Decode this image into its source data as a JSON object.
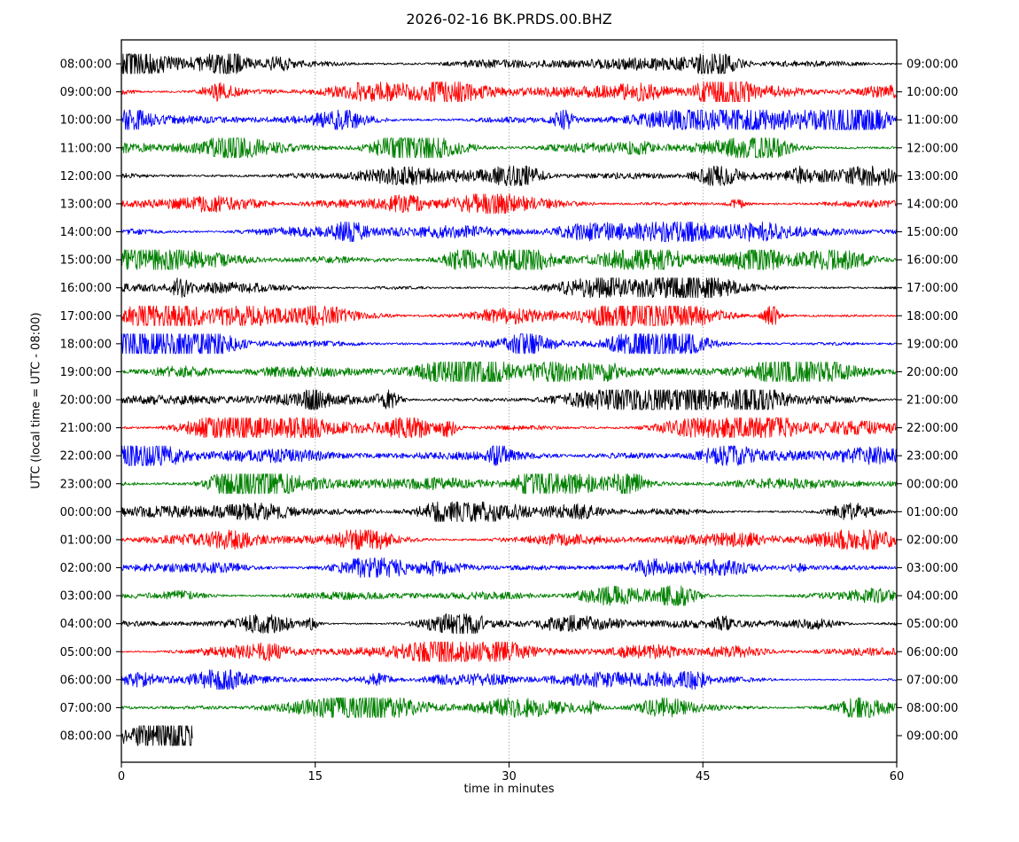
{
  "figure": {
    "title": "2026-02-16 BK.PRDS.00.BHZ",
    "xlabel": "time in minutes",
    "ylabel": "UTC (local time = UTC - 08:00)"
  },
  "chart_data": {
    "type": "line",
    "subtype": "helicorder-dayplot",
    "title": "2026-02-16 BK.PRDS.00.BHZ",
    "xlabel": "time in minutes",
    "ylabel": "UTC (local time = UTC - 08:00)",
    "xlim": [
      0,
      60
    ],
    "x_ticks": [
      0,
      15,
      30,
      45,
      60
    ],
    "x_grid": [
      15,
      30,
      45
    ],
    "grid_style": "dotted",
    "minutes_per_row": 60,
    "trace_color_cycle": [
      "#000000",
      "#ff0000",
      "#0000ff",
      "#008000"
    ],
    "rows": [
      {
        "left_label": "08:00:00",
        "right_label": "09:00:00",
        "color": "#000000",
        "minutes": 60,
        "amp": 0.95
      },
      {
        "left_label": "09:00:00",
        "right_label": "10:00:00",
        "color": "#ff0000",
        "minutes": 60,
        "amp": 1.0
      },
      {
        "left_label": "10:00:00",
        "right_label": "11:00:00",
        "color": "#0000ff",
        "minutes": 60,
        "amp": 1.0
      },
      {
        "left_label": "11:00:00",
        "right_label": "12:00:00",
        "color": "#008000",
        "minutes": 60,
        "amp": 1.0
      },
      {
        "left_label": "12:00:00",
        "right_label": "13:00:00",
        "color": "#000000",
        "minutes": 60,
        "amp": 1.05
      },
      {
        "left_label": "13:00:00",
        "right_label": "14:00:00",
        "color": "#ff0000",
        "minutes": 60,
        "amp": 1.0
      },
      {
        "left_label": "14:00:00",
        "right_label": "15:00:00",
        "color": "#0000ff",
        "minutes": 60,
        "amp": 0.95
      },
      {
        "left_label": "15:00:00",
        "right_label": "16:00:00",
        "color": "#008000",
        "minutes": 60,
        "amp": 1.0
      },
      {
        "left_label": "16:00:00",
        "right_label": "17:00:00",
        "color": "#000000",
        "minutes": 60,
        "amp": 0.9
      },
      {
        "left_label": "17:00:00",
        "right_label": "18:00:00",
        "color": "#ff0000",
        "minutes": 60,
        "amp": 1.0
      },
      {
        "left_label": "18:00:00",
        "right_label": "19:00:00",
        "color": "#0000ff",
        "minutes": 60,
        "amp": 1.0
      },
      {
        "left_label": "19:00:00",
        "right_label": "20:00:00",
        "color": "#008000",
        "minutes": 60,
        "amp": 1.05
      },
      {
        "left_label": "20:00:00",
        "right_label": "21:00:00",
        "color": "#000000",
        "minutes": 60,
        "amp": 1.0
      },
      {
        "left_label": "21:00:00",
        "right_label": "22:00:00",
        "color": "#ff0000",
        "minutes": 60,
        "amp": 1.05
      },
      {
        "left_label": "22:00:00",
        "right_label": "23:00:00",
        "color": "#0000ff",
        "minutes": 60,
        "amp": 1.05
      },
      {
        "left_label": "23:00:00",
        "right_label": "00:00:00",
        "color": "#008000",
        "minutes": 60,
        "amp": 1.0
      },
      {
        "left_label": "00:00:00",
        "right_label": "01:00:00",
        "color": "#000000",
        "minutes": 60,
        "amp": 0.9
      },
      {
        "left_label": "01:00:00",
        "right_label": "02:00:00",
        "color": "#ff0000",
        "minutes": 60,
        "amp": 0.9
      },
      {
        "left_label": "02:00:00",
        "right_label": "03:00:00",
        "color": "#0000ff",
        "minutes": 60,
        "amp": 0.75
      },
      {
        "left_label": "03:00:00",
        "right_label": "04:00:00",
        "color": "#008000",
        "minutes": 60,
        "amp": 0.8
      },
      {
        "left_label": "04:00:00",
        "right_label": "05:00:00",
        "color": "#000000",
        "minutes": 60,
        "amp": 0.7
      },
      {
        "left_label": "05:00:00",
        "right_label": "06:00:00",
        "color": "#ff0000",
        "minutes": 60,
        "amp": 0.72
      },
      {
        "left_label": "06:00:00",
        "right_label": "07:00:00",
        "color": "#0000ff",
        "minutes": 60,
        "amp": 0.68
      },
      {
        "left_label": "07:00:00",
        "right_label": "08:00:00",
        "color": "#008000",
        "minutes": 60,
        "amp": 0.85
      },
      {
        "left_label": "08:00:00",
        "right_label": "09:00:00",
        "color": "#000000",
        "minutes": 5.5,
        "amp": 0.9
      }
    ]
  }
}
